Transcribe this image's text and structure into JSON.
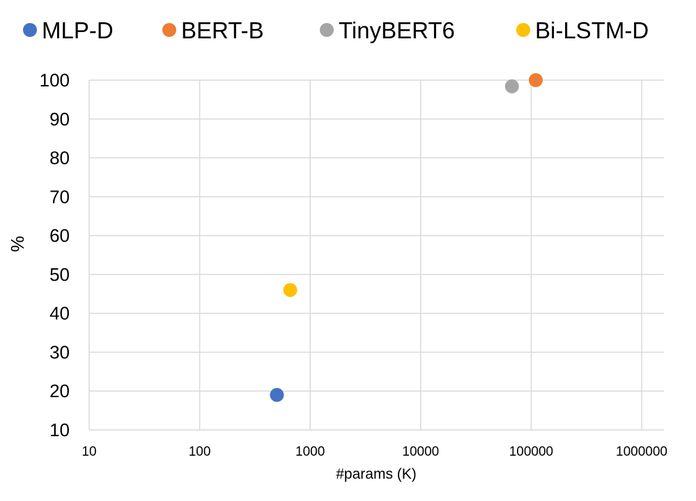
{
  "chart_data": {
    "type": "scatter",
    "title": "",
    "xlabel": "#params (K)",
    "ylabel": "%",
    "x_scale": "log",
    "xlim": [
      10,
      1000000
    ],
    "ylim": [
      10,
      100
    ],
    "x_ticks": [
      "10",
      "100",
      "1000",
      "10000",
      "100000",
      "1000000"
    ],
    "y_ticks": [
      "10",
      "20",
      "30",
      "40",
      "50",
      "60",
      "70",
      "80",
      "90",
      "100"
    ],
    "grid": true,
    "legend_position": "top",
    "series": [
      {
        "name": "MLP-D",
        "color": "#4472C4",
        "points": [
          {
            "x": 500,
            "y": 19
          }
        ]
      },
      {
        "name": "BERT-B",
        "color": "#ED7D31",
        "points": [
          {
            "x": 110000,
            "y": 100
          }
        ]
      },
      {
        "name": "TinyBERT6",
        "color": "#A5A5A5",
        "points": [
          {
            "x": 67000,
            "y": 98.4
          }
        ]
      },
      {
        "name": "Bi-LSTM-D",
        "color": "#FFC000",
        "points": [
          {
            "x": 660,
            "y": 46
          }
        ]
      }
    ]
  }
}
